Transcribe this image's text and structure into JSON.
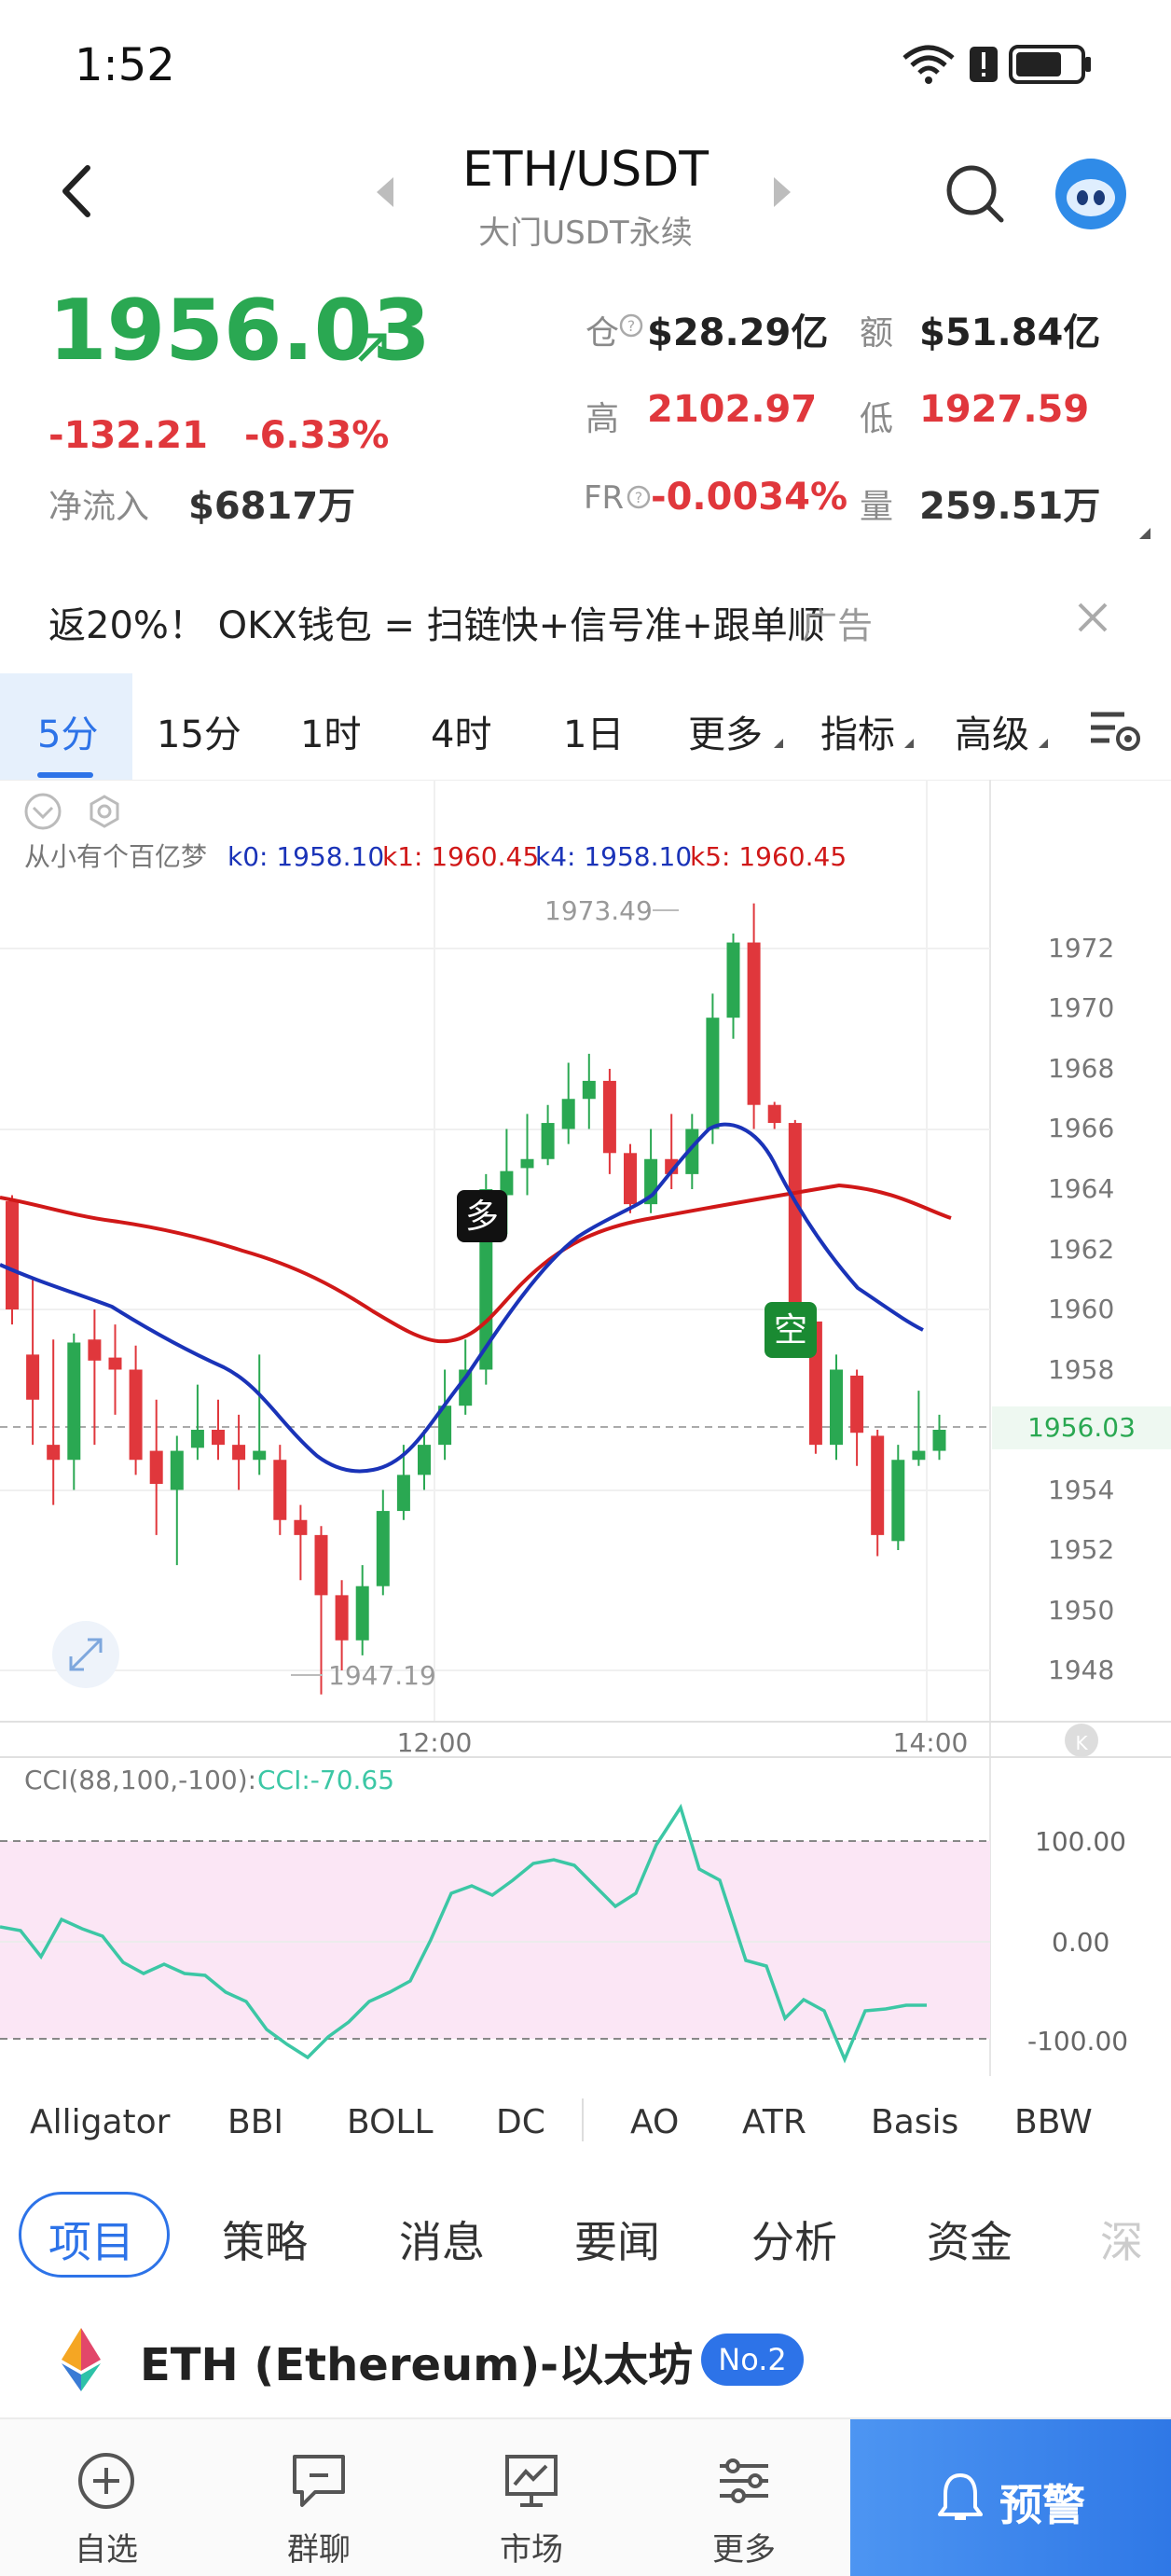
{
  "status_bar": {
    "time": "1:52"
  },
  "header": {
    "pair": "ETH/USDT",
    "subtitle": "大门USDT永续",
    "search_icon": "search-icon",
    "avatar_icon": "robot-avatar-icon"
  },
  "price": {
    "last": "1956.03",
    "change": "-132.21",
    "change_pct": "-6.33%",
    "net_inflow_label": "净流入",
    "net_inflow": "$6817万"
  },
  "stats": {
    "oi_label": "仓",
    "oi": "$28.29亿",
    "turnover_label": "额",
    "turnover": "$51.84亿",
    "high_label": "高",
    "high": "2102.97",
    "low_label": "低",
    "low": "1927.59",
    "fr_label": "FR",
    "fr": "-0.0034%",
    "vol_label": "量",
    "vol": "259.51万"
  },
  "ad": {
    "text": "返20%！ OKX钱包 = 扫链快+信号准+跟单顺",
    "tag": "广告"
  },
  "timeframes": {
    "items": [
      "5分",
      "15分",
      "1时",
      "4时",
      "1日",
      "更多",
      "指标",
      "高级"
    ],
    "active": "5分"
  },
  "chart": {
    "indicator_name": "从小有个百亿梦",
    "k0": "k0: 1958.10",
    "k1": "k1: 1960.45",
    "k4": "k4: 1958.10",
    "k5": "k5: 1960.45",
    "max_label": "1973.49",
    "min_label": "1947.19",
    "price_tag": "1956.03",
    "long_marker": "多",
    "short_marker": "空",
    "x_labels": [
      "12:00",
      "14:00"
    ],
    "y_labels": [
      "1972",
      "1970",
      "1968",
      "1966",
      "1964",
      "1962",
      "1960",
      "1958",
      "1954",
      "1952",
      "1950",
      "1948"
    ],
    "colors": {
      "up": "#2aa852",
      "down": "#e0373c",
      "k0": "#1a33b8",
      "k1": "#d01818"
    }
  },
  "cci": {
    "title": "CCI(88,100,-100):",
    "value": "CCI:-70.65",
    "levels": [
      "100.00",
      "0.00",
      "-100.00"
    ],
    "color": "#3cc7a5"
  },
  "indicators": [
    "Alligator",
    "BBI",
    "BOLL",
    "DC",
    "AO",
    "ATR",
    "Basis",
    "BBW"
  ],
  "bottom_tabs": {
    "items": [
      "项目",
      "策略",
      "消息",
      "要闻",
      "分析",
      "资金",
      "深"
    ],
    "active": "项目"
  },
  "coin": {
    "name": "ETH (Ethereum)-以太坊",
    "rank": "No.2"
  },
  "nav": {
    "items": [
      {
        "label": "自选",
        "icon": "plus-circle-icon"
      },
      {
        "label": "群聊",
        "icon": "chat-icon"
      },
      {
        "label": "市场",
        "icon": "market-chart-icon"
      },
      {
        "label": "更多",
        "icon": "more-sliders-icon"
      }
    ],
    "alert": "预警"
  }
}
